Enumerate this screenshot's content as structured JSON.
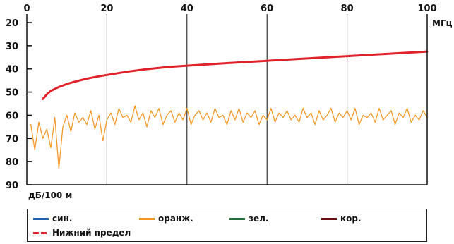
{
  "chart_data": {
    "type": "line",
    "x_unit_label": "МГц",
    "y_unit_label": "дБ/100 м",
    "xlim": [
      0,
      100
    ],
    "ylim": [
      90,
      20
    ],
    "y_inverted": true,
    "x_ticks": [
      0,
      20,
      40,
      60,
      80,
      100
    ],
    "y_ticks": [
      20,
      30,
      40,
      50,
      60,
      70,
      80,
      90
    ],
    "grid": "vertical",
    "legend_position": "bottom",
    "colors": {
      "blue": "#1f5fa8",
      "orange": "#f39a2a",
      "green": "#1e6b3a",
      "brown": "#6b0f14",
      "red": "#e0232b"
    },
    "series": [
      {
        "name": "син.",
        "color": "#1f5fa8",
        "x": [],
        "y": []
      },
      {
        "name": "оранж.",
        "color": "#f39a2a",
        "x": [
          1,
          2,
          3,
          4,
          5,
          6,
          7,
          8,
          9,
          10,
          11,
          12,
          13,
          14,
          15,
          16,
          17,
          18,
          19,
          20,
          21,
          22,
          23,
          24,
          25,
          26,
          27,
          28,
          29,
          30,
          31,
          32,
          33,
          34,
          35,
          36,
          37,
          38,
          39,
          40,
          41,
          42,
          43,
          44,
          45,
          46,
          47,
          48,
          49,
          50,
          51,
          52,
          53,
          54,
          55,
          56,
          57,
          58,
          59,
          60,
          61,
          62,
          63,
          64,
          65,
          66,
          67,
          68,
          69,
          70,
          71,
          72,
          73,
          74,
          75,
          76,
          77,
          78,
          79,
          80,
          81,
          82,
          83,
          84,
          85,
          86,
          87,
          88,
          89,
          90,
          91,
          92,
          93,
          94,
          95,
          96,
          97,
          98,
          99,
          100
        ],
        "y": [
          64,
          75,
          63,
          70,
          66,
          74,
          61,
          83,
          65,
          60,
          67,
          59,
          63,
          61,
          64,
          58,
          66,
          60,
          71,
          62,
          59,
          64,
          57,
          61,
          60,
          63,
          56,
          62,
          59,
          65,
          58,
          61,
          57,
          64,
          60,
          58,
          63,
          59,
          62,
          57,
          64,
          60,
          58,
          62,
          59,
          63,
          57,
          61,
          60,
          64,
          58,
          62,
          57,
          63,
          59,
          61,
          58,
          64,
          60,
          62,
          57,
          63,
          59,
          61,
          58,
          62,
          60,
          63,
          57,
          61,
          59,
          64,
          58,
          62,
          60,
          57,
          63,
          59,
          61,
          58,
          62,
          57,
          64,
          60,
          61,
          59,
          63,
          57,
          62,
          60,
          58,
          64,
          59,
          61,
          57,
          63,
          60,
          62,
          58,
          61
        ]
      },
      {
        "name": "зел.",
        "color": "#1e6b3a",
        "x": [],
        "y": []
      },
      {
        "name": "кор.",
        "color": "#6b0f14",
        "x": [],
        "y": []
      },
      {
        "name": "Нижний предел",
        "color": "#e0232b",
        "x": [
          4,
          5,
          6,
          8,
          10,
          12,
          15,
          18,
          20,
          25,
          30,
          35,
          40,
          50,
          60,
          70,
          80,
          90,
          100
        ],
        "y": [
          53.0,
          51.0,
          49.5,
          47.8,
          46.5,
          45.5,
          44.2,
          43.2,
          42.6,
          41.2,
          40.1,
          39.2,
          38.6,
          37.5,
          36.5,
          35.5,
          34.5,
          33.5,
          32.5
        ]
      }
    ]
  },
  "legend": {
    "items": [
      {
        "label": "син.",
        "color": "#1f5fa8"
      },
      {
        "label": "оранж.",
        "color": "#f39a2a"
      },
      {
        "label": "зел.",
        "color": "#1e6b3a"
      },
      {
        "label": "кор.",
        "color": "#6b0f14"
      },
      {
        "label": "Нижний предел",
        "color": "#e0232b"
      }
    ]
  }
}
